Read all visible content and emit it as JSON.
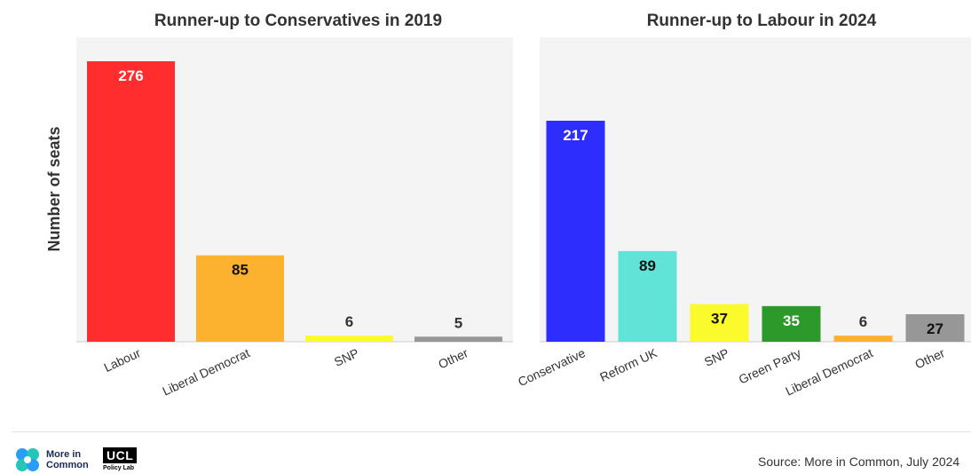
{
  "chart_data": [
    {
      "type": "bar",
      "title": "Runner-up to Conservatives in 2019",
      "ylabel": "Number of seats",
      "categories": [
        "Labour",
        "Liberal Democrat",
        "SNP",
        "Other"
      ],
      "values": [
        276,
        85,
        6,
        5
      ],
      "colors": [
        "#ff2d2d",
        "#fdb22f",
        "#fafa2c",
        "#979797"
      ],
      "ylim": [
        0,
        276
      ]
    },
    {
      "type": "bar",
      "title": "Runner-up to Labour in 2024",
      "categories": [
        "Conservative",
        "Reform UK",
        "SNP",
        "Green Party",
        "Liberal Democrat",
        "Other"
      ],
      "values": [
        217,
        89,
        37,
        35,
        6,
        27
      ],
      "colors": [
        "#2d2dfd",
        "#61e3d8",
        "#fafa2c",
        "#2b9a2b",
        "#fdb22f",
        "#979797"
      ],
      "ylim": [
        0,
        217
      ]
    }
  ],
  "footer": {
    "logo_text_line1": "More in",
    "logo_text_line2": "Common",
    "ucl_text": "UCL",
    "ucl_sub": "Policy Lab",
    "source": "Source: More in Common, July 2024"
  }
}
